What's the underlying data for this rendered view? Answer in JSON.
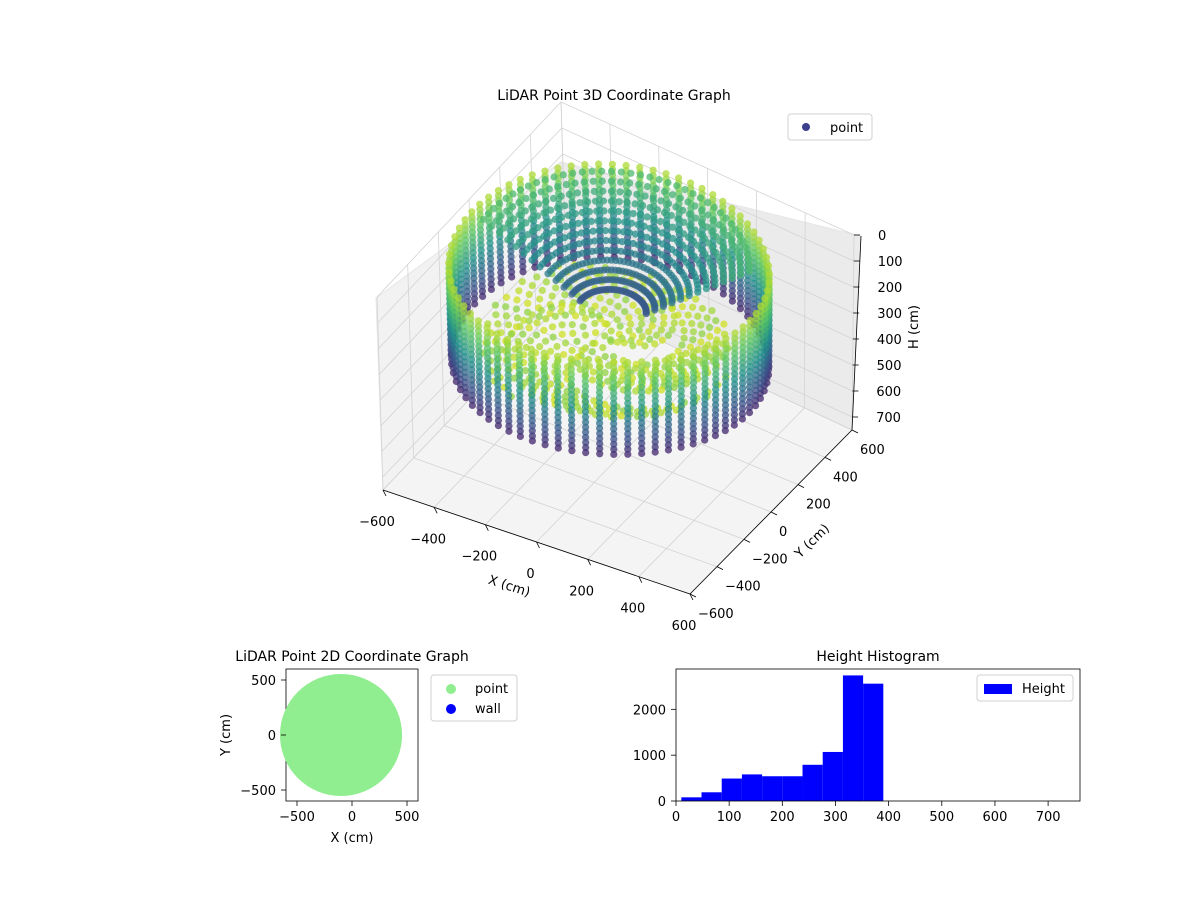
{
  "chart_data": [
    {
      "type": "scatter3d",
      "title": "LiDAR Point 3D Coordinate Graph",
      "xlabel": "X (cm)",
      "ylabel": "Y (cm)",
      "zlabel": "H (cm)",
      "xlim": [
        -600,
        600
      ],
      "ylim": [
        -600,
        600
      ],
      "zlim": [
        750,
        0
      ],
      "xticks": [
        "−600",
        "−400",
        "−200",
        "0",
        "200",
        "400",
        "600"
      ],
      "yticks": [
        "−600",
        "−400",
        "−200",
        "0",
        "200",
        "400",
        "600"
      ],
      "zticks": [
        "0",
        "100",
        "200",
        "300",
        "400",
        "500",
        "600",
        "700"
      ],
      "legend": [
        "point"
      ],
      "legend_position": "top-right",
      "grid": true,
      "colormap": "viridis",
      "legend_color": "#3b3f8c",
      "description_of_shape": {
        "cylinder_radius": 550,
        "wall_h_range": [
          0,
          400
        ],
        "scan_lines": 72,
        "floor_points_h": [
          280,
          400
        ]
      }
    },
    {
      "type": "scatter",
      "title": "LiDAR Point 2D Coordinate Graph",
      "xlabel": "X (cm)",
      "ylabel": "Y (cm)",
      "xticks": [
        "−500",
        "0",
        "500"
      ],
      "yticks": [
        "500",
        "0",
        "−500"
      ],
      "xlim": [
        -600,
        600
      ],
      "ylim": [
        -600,
        600
      ],
      "series": [
        {
          "name": "point",
          "color": "#90ee90",
          "center": [
            -100,
            0
          ],
          "radius": 555
        },
        {
          "name": "wall",
          "color": "#0000ff"
        }
      ],
      "legend_position": "outside-right"
    },
    {
      "type": "bar",
      "title": "Height Histogram",
      "xlabel": "",
      "ylabel": "",
      "xlim": [
        0,
        760
      ],
      "ylim": [
        0,
        2880
      ],
      "xticks": [
        "0",
        "100",
        "200",
        "300",
        "400",
        "500",
        "600",
        "700"
      ],
      "yticks": [
        "0",
        "1000",
        "2000"
      ],
      "bin_width": 38,
      "bin_edges_start": 10,
      "values": [
        80,
        190,
        490,
        580,
        540,
        540,
        790,
        1070,
        2740,
        2560
      ],
      "series": [
        {
          "name": "Height",
          "color": "#0000ff"
        }
      ],
      "legend_position": "top-right"
    }
  ]
}
